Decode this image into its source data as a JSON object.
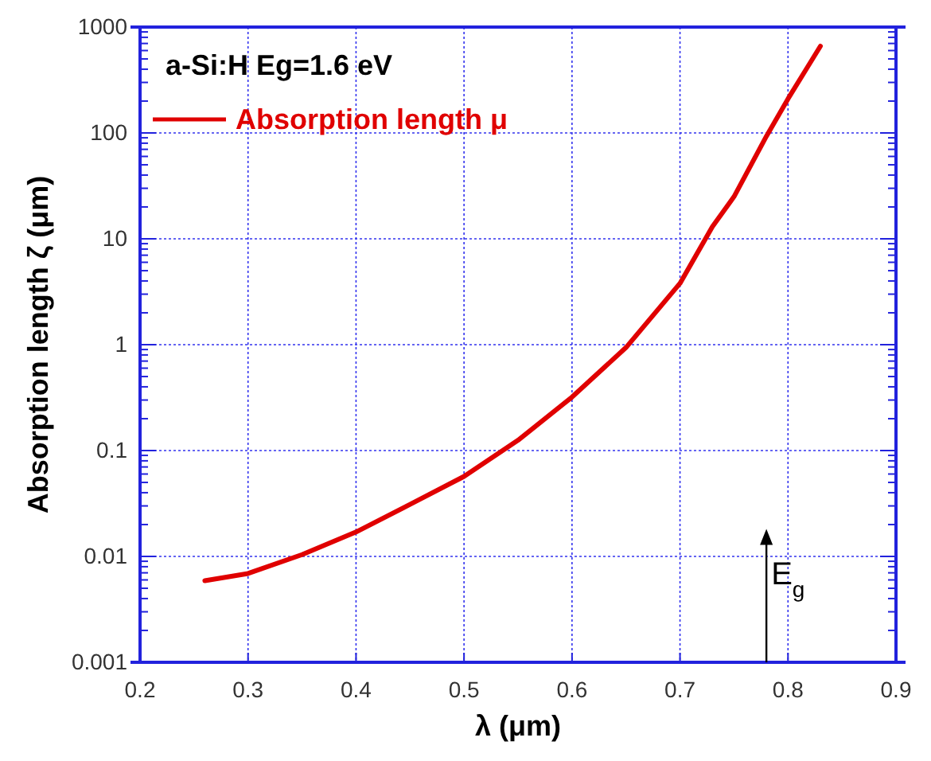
{
  "chart_data": {
    "type": "line",
    "title": "a-Si:H Eg=1.6 eV",
    "xlabel": "λ (μm)",
    "ylabel": "Absorption length ζ (μm)",
    "x": [
      0.26,
      0.3,
      0.35,
      0.4,
      0.45,
      0.5,
      0.55,
      0.6,
      0.65,
      0.7,
      0.73,
      0.75,
      0.78,
      0.8,
      0.83
    ],
    "series": [
      {
        "name": "Absorption length μ",
        "color": "#e00000",
        "values": [
          0.0059,
          0.0069,
          0.0104,
          0.017,
          0.031,
          0.057,
          0.125,
          0.32,
          0.94,
          3.8,
          13,
          25,
          93,
          210,
          660
        ]
      }
    ],
    "log": "y",
    "xlim": [
      0.2,
      0.9
    ],
    "ylim": [
      0.001,
      1000
    ],
    "xticks": [
      0.2,
      0.3,
      0.4,
      0.5,
      0.6,
      0.7,
      0.8,
      0.9
    ],
    "yticks": [
      0.001,
      {
        "value": 0.002,
        "label": null
      },
      {
        "value": 0.003,
        "label": null
      },
      {
        "value": 0.004,
        "label": null
      },
      {
        "value": 0.005,
        "label": null
      },
      {
        "value": 0.006,
        "label": null
      },
      {
        "value": 0.007,
        "label": null
      },
      {
        "value": 0.008,
        "label": null
      },
      {
        "value": 0.009,
        "label": null
      },
      0.01,
      {
        "value": 0.02,
        "label": null
      },
      {
        "value": 0.03,
        "label": null
      },
      {
        "value": 0.04,
        "label": null
      },
      {
        "value": 0.05,
        "label": null
      },
      {
        "value": 0.06,
        "label": null
      },
      {
        "value": 0.07,
        "label": null
      },
      {
        "value": 0.08,
        "label": null
      },
      {
        "value": 0.09,
        "label": null
      },
      0.1,
      {
        "value": 0.2,
        "label": null
      },
      {
        "value": 0.3,
        "label": null
      },
      {
        "value": 0.4,
        "label": null
      },
      {
        "value": 0.5,
        "label": null
      },
      {
        "value": 0.6,
        "label": null
      },
      {
        "value": 0.7,
        "label": null
      },
      {
        "value": 0.8,
        "label": null
      },
      {
        "value": 0.9,
        "label": null
      },
      1,
      {
        "value": 2,
        "label": null
      },
      {
        "value": 3,
        "label": null
      },
      {
        "value": 4,
        "label": null
      },
      {
        "value": 5,
        "label": null
      },
      {
        "value": 6,
        "label": null
      },
      {
        "value": 7,
        "label": null
      },
      {
        "value": 8,
        "label": null
      },
      {
        "value": 9,
        "label": null
      },
      10,
      {
        "value": 20,
        "label": null
      },
      {
        "value": 30,
        "label": null
      },
      {
        "value": 40,
        "label": null
      },
      {
        "value": 50,
        "label": null
      },
      {
        "value": 60,
        "label": null
      },
      {
        "value": 70,
        "label": null
      },
      {
        "value": 80,
        "label": null
      },
      {
        "value": 90,
        "label": null
      },
      100,
      {
        "value": 200,
        "label": null
      },
      {
        "value": 300,
        "label": null
      },
      {
        "value": 400,
        "label": null
      },
      {
        "value": 500,
        "label": null
      },
      {
        "value": 600,
        "label": null
      },
      {
        "value": 700,
        "label": null
      },
      {
        "value": 800,
        "label": null
      },
      {
        "value": 900,
        "label": null
      },
      1000
    ],
    "grid": true,
    "legend": "top left",
    "marker": "none",
    "line_style": "solid",
    "ref_lines": [
      {
        "axis": "x",
        "value": 0.78,
        "label": "E$_{g}$"
      }
    ]
  }
}
